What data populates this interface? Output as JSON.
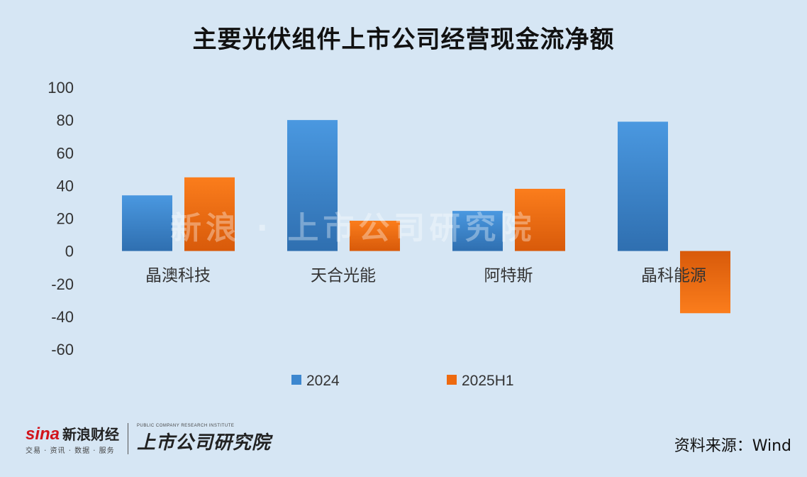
{
  "title": "主要光伏组件上市公司经营现金流净额",
  "source": "资料来源：Wind",
  "logo": {
    "sina_mark": "sina",
    "sina_name": "新浪财经",
    "sina_tagline": "交易 · 资讯 · 数据 · 服务",
    "ssgs_english": "PUBLIC COMPANY RESEARCH INSTITUTE",
    "ssgs_name": "上市公司研究院"
  },
  "colors": {
    "series_2024": "#3d87cf",
    "series_2025H1": "#ee6a10",
    "background": "#d6e6f4"
  },
  "chart_data": {
    "type": "bar",
    "categories": [
      "晶澳科技",
      "天合光能",
      "阿特斯",
      "晶科能源"
    ],
    "series": [
      {
        "name": "2024",
        "values": [
          34,
          80,
          24.5,
          79
        ]
      },
      {
        "name": "2025H1",
        "values": [
          45,
          18.5,
          38,
          -38
        ]
      }
    ],
    "ylim": [
      -60,
      100
    ],
    "yticks": [
      "100",
      "80",
      "60",
      "40",
      "20",
      "0",
      "-20",
      "-40",
      "-60"
    ],
    "legend_position": "bottom",
    "grid": false
  }
}
